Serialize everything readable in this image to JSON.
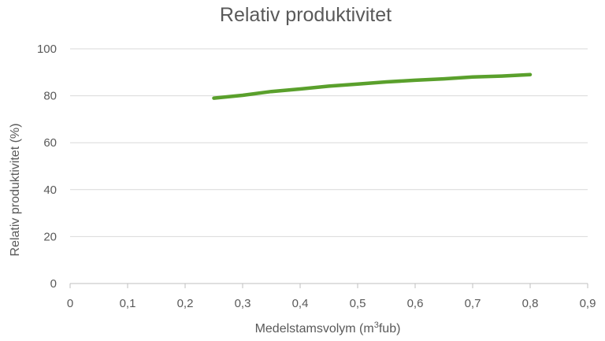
{
  "chart_data": {
    "type": "line",
    "title": "Relativ produktivitet",
    "xlabel": {
      "prefix": "Medelstamsvolym (m",
      "sup": "3",
      "suffix": "fub)"
    },
    "ylabel": "Relativ produktivitet (%)",
    "xlim": [
      0,
      0.9
    ],
    "ylim": [
      0,
      100
    ],
    "x_ticks": [
      "0",
      "0,1",
      "0,2",
      "0,3",
      "0,4",
      "0,5",
      "0,6",
      "0,7",
      "0,8",
      "0,9"
    ],
    "y_ticks": [
      "0",
      "20",
      "40",
      "60",
      "80",
      "100"
    ],
    "grid": true,
    "legend": "none",
    "series": [
      {
        "color": "#5aa02c",
        "x": [
          0.25,
          0.3,
          0.35,
          0.4,
          0.45,
          0.5,
          0.55,
          0.6,
          0.65,
          0.7,
          0.75,
          0.8
        ],
        "y": [
          79,
          80.2,
          81.8,
          82.9,
          84.1,
          85,
          85.9,
          86.6,
          87.2,
          88,
          88.4,
          89
        ]
      }
    ]
  }
}
